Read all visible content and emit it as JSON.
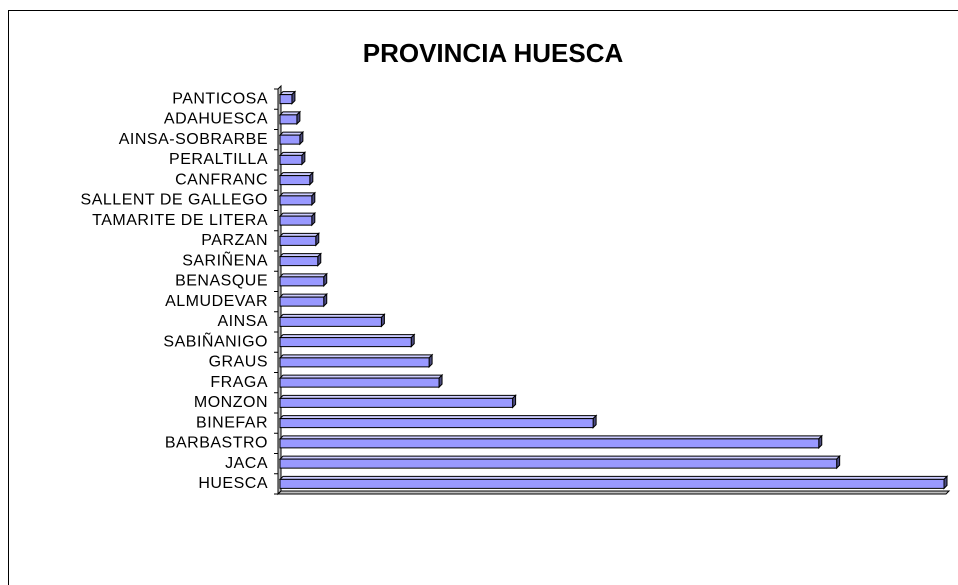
{
  "chart_data": {
    "type": "bar",
    "orientation": "horizontal",
    "title": "PROVINCIA HUESCA",
    "categories": [
      "PANTICOSA",
      "ADAHUESCA",
      "AINSA-SOBRARBE",
      "PERALTILLA",
      "CANFRANC",
      "SALLENT DE GALLEGO",
      "TAMARITE DE LITERA",
      "PARZAN",
      "SARIÑENA",
      "BENASQUE",
      "ALMUDEVAR",
      "AINSA",
      "SABIÑANIGO",
      "GRAUS",
      "FRAGA",
      "MONZON",
      "BINEFAR",
      "BARBASTRO",
      "JACA",
      "HUESCA"
    ],
    "values": [
      12,
      17,
      20,
      22,
      30,
      32,
      32,
      36,
      38,
      44,
      44,
      102,
      132,
      150,
      160,
      234,
      315,
      542,
      560,
      668
    ],
    "color": "#9999ff",
    "xlim": [
      0,
      670
    ]
  }
}
